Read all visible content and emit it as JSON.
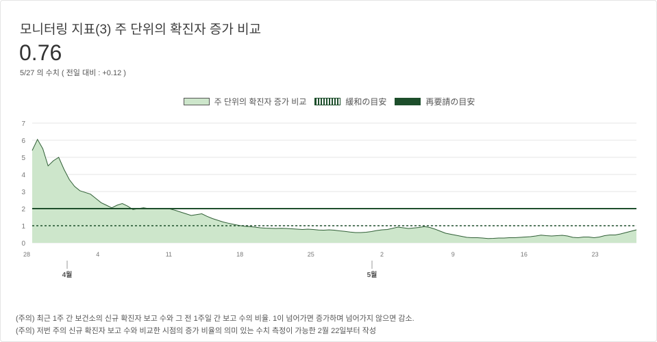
{
  "title": "모니터링 지표(3) 주 단위의 확진자 증가 비교",
  "value": "0.76",
  "subtitle": "5/27 의 수치 ( 전일 대비 : +0.12 )",
  "legend": {
    "series": "주 단위의 확진자 증가 비교",
    "relax": "緩和の目安",
    "rerequest": "再要請の目安"
  },
  "notes": [
    "(주의) 최근 1주 간 보건소의 신규 확진자 보고 수와 그 전 1주일 간 보고 수의 비율. 1이 넘어가면 증가하며 넘어가지 않으면 감소.",
    "(주의) 저번 주의 신규 확진자 보고 수와 비교한 시점의 증가 비율의 의미 있는 수치 측정이 가능한 2월 22일부터 작성"
  ],
  "colors": {
    "area": "#cde6cb",
    "line": "#2f5e35",
    "threshold": "#1d4e2b"
  },
  "chart_data": {
    "type": "area",
    "x_ticks": [
      "28",
      "4",
      "11",
      "18",
      "25",
      "2",
      "9",
      "16",
      "23"
    ],
    "month_labels": [
      "4월",
      "5월"
    ],
    "y_ticks": [
      "0",
      "1",
      "2",
      "3",
      "4",
      "5",
      "6",
      "7"
    ],
    "ylim": [
      0,
      7
    ],
    "values": [
      5.4,
      6.05,
      5.5,
      4.5,
      4.8,
      5.0,
      4.3,
      3.7,
      3.3,
      3.05,
      2.95,
      2.85,
      2.6,
      2.35,
      2.2,
      2.05,
      2.2,
      2.3,
      2.15,
      1.95,
      2.0,
      2.05,
      2.0,
      2.0,
      1.98,
      1.98,
      1.98,
      1.9,
      1.8,
      1.7,
      1.6,
      1.65,
      1.7,
      1.55,
      1.42,
      1.32,
      1.22,
      1.15,
      1.08,
      1.02,
      0.97,
      0.95,
      0.92,
      0.88,
      0.86,
      0.85,
      0.84,
      0.85,
      0.84,
      0.82,
      0.8,
      0.78,
      0.8,
      0.78,
      0.75,
      0.74,
      0.76,
      0.74,
      0.7,
      0.67,
      0.63,
      0.6,
      0.6,
      0.62,
      0.66,
      0.72,
      0.76,
      0.78,
      0.85,
      0.92,
      0.88,
      0.84,
      0.87,
      0.9,
      0.95,
      0.9,
      0.8,
      0.68,
      0.56,
      0.5,
      0.44,
      0.38,
      0.32,
      0.3,
      0.3,
      0.28,
      0.25,
      0.26,
      0.28,
      0.28,
      0.3,
      0.3,
      0.32,
      0.34,
      0.36,
      0.4,
      0.45,
      0.42,
      0.4,
      0.42,
      0.44,
      0.4,
      0.32,
      0.3,
      0.34,
      0.34,
      0.3,
      0.34,
      0.42,
      0.46,
      0.46,
      0.52,
      0.6,
      0.68,
      0.76
    ],
    "thresholds": {
      "relax": 1,
      "rerequest": 2
    },
    "grid": true
  }
}
